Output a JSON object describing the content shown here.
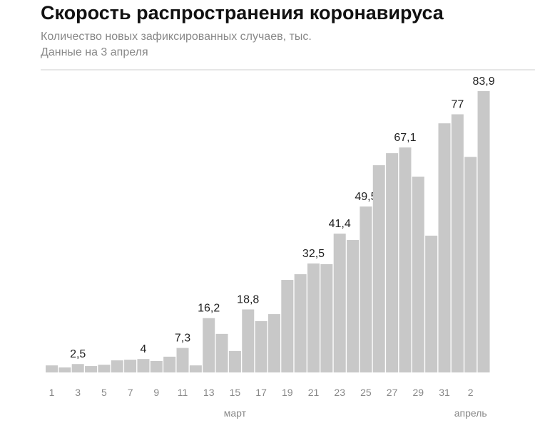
{
  "chart_data": {
    "type": "bar",
    "title": "Скорость распространения коронавируса",
    "subtitle": [
      "Количество новых зафиксированных случаев, тыс.",
      "Данные на 3 апреля"
    ],
    "categories": [
      "1",
      null,
      "3",
      null,
      "5",
      null,
      "7",
      null,
      "9",
      null,
      "11",
      null,
      "13",
      null,
      "15",
      null,
      "17",
      null,
      "19",
      null,
      "21",
      null,
      "23",
      null,
      "25",
      null,
      "27",
      null,
      "29",
      null,
      "31",
      null,
      "2",
      null
    ],
    "values": [
      2.1,
      1.5,
      2.5,
      1.9,
      2.3,
      3.6,
      3.8,
      4,
      3.4,
      4.7,
      7.3,
      2.1,
      16.2,
      11.5,
      6.4,
      18.8,
      15.3,
      17.4,
      27.6,
      29.3,
      32.5,
      32.3,
      41.4,
      39.5,
      49.5,
      61.8,
      65.4,
      67.1,
      58.4,
      40.8,
      74.3,
      77,
      64.3,
      83.9
    ],
    "value_labels": [
      null,
      null,
      "2,5",
      null,
      null,
      null,
      null,
      "4",
      null,
      null,
      "7,3",
      null,
      "16,2",
      null,
      null,
      "18,8",
      null,
      null,
      null,
      null,
      "32,5",
      null,
      "41,4",
      null,
      "49,5",
      null,
      null,
      "67,1",
      null,
      null,
      null,
      "77",
      null,
      "83,9"
    ],
    "month_labels": [
      "март",
      "апрель"
    ],
    "color": "#c8c8c8"
  }
}
